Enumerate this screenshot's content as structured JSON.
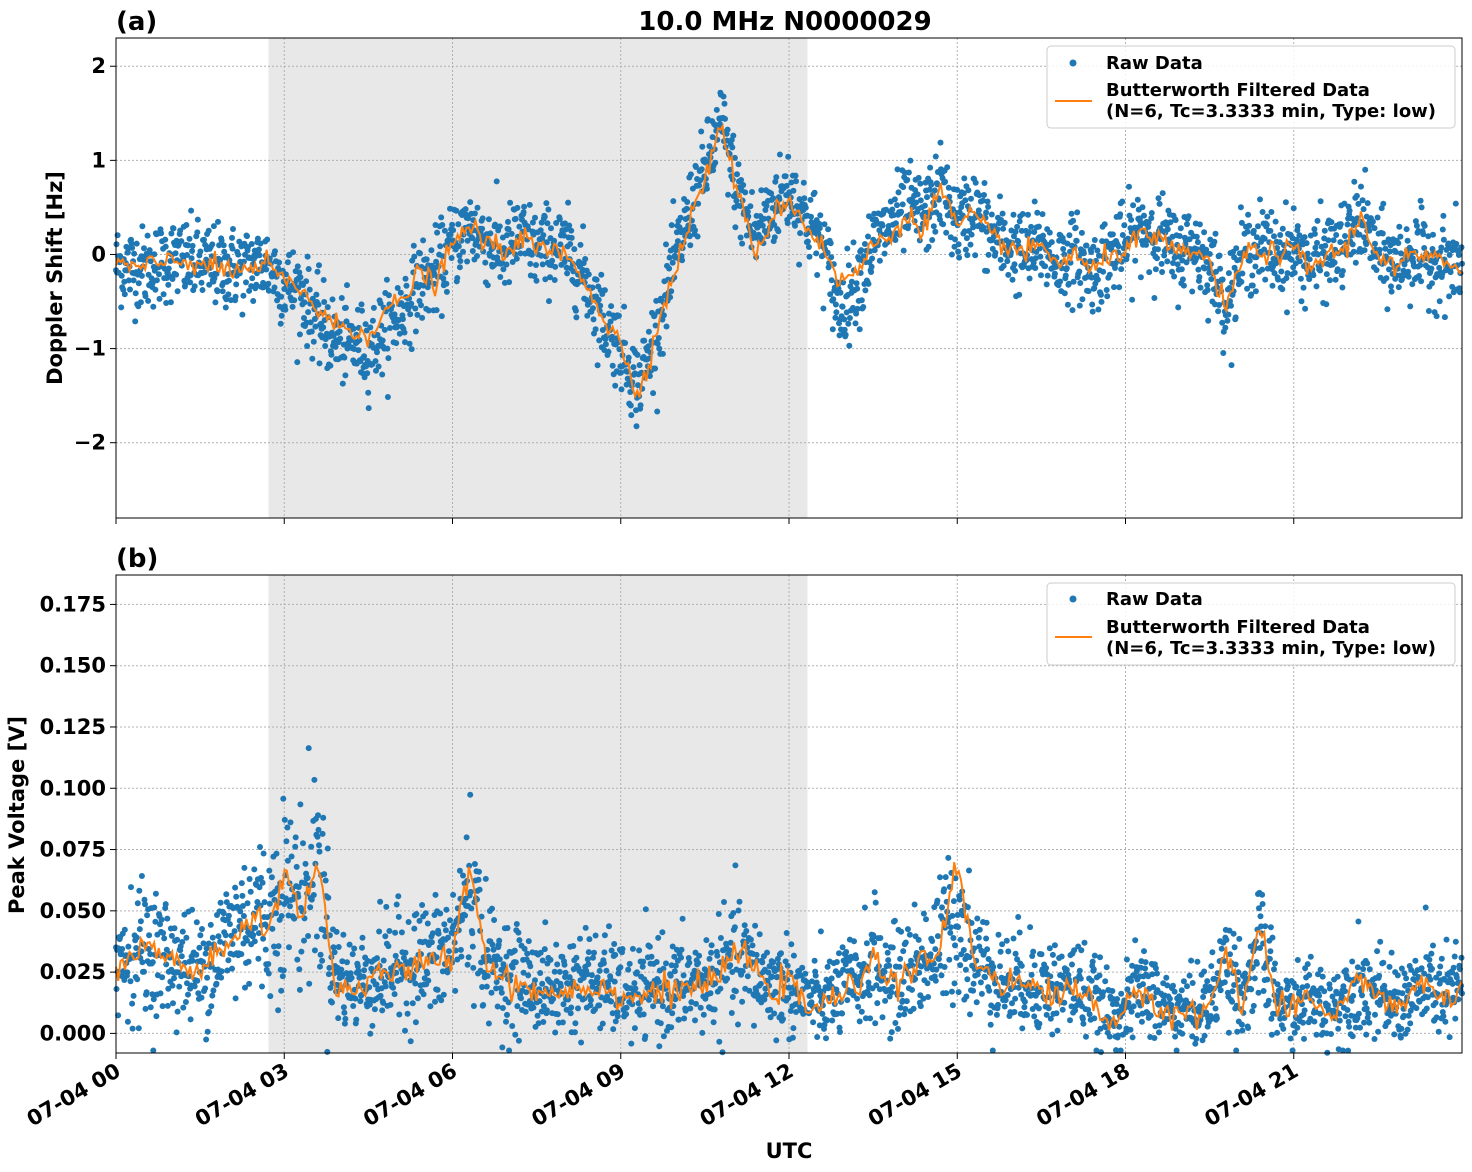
{
  "chart_data": [
    {
      "type": "scatter",
      "panel_label": "(a)",
      "title": "10.0 MHz N0000029",
      "xlabel": "",
      "ylabel": "Doppler Shift [Hz]",
      "x_unit": "hours UTC on 07-04",
      "xlim": [
        0,
        24
      ],
      "ylim": [
        -2.8,
        2.3
      ],
      "yticks": [
        -2,
        -1,
        0,
        1,
        2
      ],
      "ytick_labels": [
        "−2",
        "−1",
        "0",
        "1",
        "2"
      ],
      "grid": true,
      "shaded_region": [
        2.72,
        12.33
      ],
      "legend": {
        "placement": "top-right",
        "entries": [
          "Raw Data",
          "Butterworth Filtered Data",
          "(N=6, Tc=3.3333 min, Type: low)"
        ]
      },
      "series": [
        {
          "name": "Raw Data",
          "color": "#1f77b4",
          "kind": "scatter",
          "x": [
            0,
            0.5,
            1,
            1.5,
            2,
            2.5,
            2.7,
            3,
            3.3,
            3.6,
            3.9,
            4.2,
            4.5,
            4.8,
            5.1,
            5.4,
            5.7,
            6,
            6.3,
            6.6,
            6.9,
            7.2,
            7.5,
            7.8,
            8.1,
            8.4,
            8.7,
            9,
            9.3,
            9.6,
            9.9,
            10.2,
            10.5,
            10.8,
            11.1,
            11.4,
            11.7,
            12,
            12.3,
            12.6,
            12.9,
            13.2,
            13.5,
            13.8,
            14.1,
            14.4,
            14.7,
            15,
            15.3,
            15.6,
            15.9,
            16.2,
            16.5,
            16.8,
            17.1,
            17.4,
            17.7,
            18,
            18.3,
            18.6,
            18.9,
            19.2,
            19.5,
            19.8,
            20.1,
            20.4,
            20.7,
            21,
            21.3,
            21.6,
            21.9,
            22.2,
            22.5,
            22.8,
            23.1,
            23.4,
            23.7,
            24
          ],
          "y": [
            -0.1,
            -0.15,
            -0.05,
            -0.1,
            -0.15,
            -0.12,
            -0.1,
            -0.3,
            -0.4,
            -0.7,
            -0.9,
            -0.95,
            -1.0,
            -0.8,
            -0.6,
            -0.3,
            -0.2,
            0.1,
            0.3,
            0.15,
            0.0,
            0.2,
            0.05,
            0.1,
            0.0,
            -0.3,
            -0.7,
            -1.0,
            -1.4,
            -0.9,
            -0.2,
            0.4,
            0.9,
            1.4,
            0.6,
            0.2,
            0.5,
            0.7,
            0.4,
            0.1,
            -0.6,
            -0.3,
            0.1,
            0.3,
            0.5,
            0.4,
            0.7,
            0.3,
            0.5,
            0.2,
            0.1,
            0.0,
            0.1,
            -0.1,
            0.0,
            -0.2,
            0.0,
            0.1,
            0.3,
            0.2,
            0.0,
            0.1,
            -0.1,
            -0.5,
            0.0,
            0.1,
            0.0,
            0.05,
            -0.1,
            0.0,
            0.1,
            0.4,
            0.0,
            -0.1,
            0.0,
            -0.05,
            -0.1,
            -0.1
          ]
        },
        {
          "name": "Butterworth Filtered Data",
          "color": "#ff7f0e",
          "kind": "line",
          "x": [
            0,
            0.5,
            1,
            1.5,
            2,
            2.5,
            2.7,
            3,
            3.3,
            3.6,
            3.9,
            4.2,
            4.5,
            4.8,
            5.1,
            5.4,
            5.7,
            6,
            6.3,
            6.6,
            6.9,
            7.2,
            7.5,
            7.8,
            8.1,
            8.4,
            8.7,
            9,
            9.3,
            9.6,
            9.9,
            10.2,
            10.5,
            10.8,
            11.1,
            11.4,
            11.7,
            12,
            12.3,
            12.6,
            12.9,
            13.2,
            13.5,
            13.8,
            14.1,
            14.4,
            14.7,
            15,
            15.3,
            15.6,
            15.9,
            16.2,
            16.5,
            16.8,
            17.1,
            17.4,
            17.7,
            18,
            18.3,
            18.6,
            18.9,
            19.2,
            19.5,
            19.8,
            20.1,
            20.4,
            20.7,
            21,
            21.3,
            21.6,
            21.9,
            22.2,
            22.5,
            22.8,
            23.1,
            23.4,
            23.7,
            24
          ],
          "y": [
            -0.1,
            -0.15,
            -0.05,
            -0.1,
            -0.18,
            -0.15,
            -0.1,
            -0.3,
            -0.35,
            -0.6,
            -0.75,
            -0.8,
            -0.85,
            -0.6,
            -0.5,
            -0.2,
            -0.3,
            0.1,
            0.3,
            0.15,
            0.0,
            0.2,
            0.05,
            0.05,
            -0.05,
            -0.3,
            -0.7,
            -0.95,
            -1.5,
            -0.9,
            -0.3,
            0.3,
            0.8,
            1.4,
            0.6,
            0.0,
            0.4,
            0.6,
            0.3,
            0.1,
            -0.3,
            -0.2,
            0.1,
            0.2,
            0.4,
            0.3,
            0.7,
            0.3,
            0.4,
            0.2,
            0.1,
            0.0,
            0.1,
            -0.1,
            0.0,
            -0.2,
            0.0,
            0.05,
            0.2,
            0.15,
            0.0,
            0.05,
            -0.1,
            -0.6,
            0.0,
            0.05,
            0.0,
            0.05,
            -0.15,
            0.0,
            0.05,
            0.4,
            0.0,
            -0.15,
            0.0,
            -0.05,
            -0.1,
            -0.1
          ]
        }
      ]
    },
    {
      "type": "scatter",
      "panel_label": "(b)",
      "title": "",
      "xlabel": "UTC",
      "ylabel": "Peak Voltage [V]",
      "x_unit": "hours UTC on 07-04",
      "xlim": [
        0,
        24
      ],
      "ylim": [
        -0.008,
        0.187
      ],
      "xticks": [
        0,
        3,
        6,
        9,
        12,
        15,
        18,
        21
      ],
      "xtick_labels": [
        "07-04 00",
        "07-04 03",
        "07-04 06",
        "07-04 09",
        "07-04 12",
        "07-04 15",
        "07-04 18",
        "07-04 21"
      ],
      "yticks": [
        0.0,
        0.025,
        0.05,
        0.075,
        0.1,
        0.125,
        0.15,
        0.175
      ],
      "ytick_labels": [
        "0.000",
        "0.025",
        "0.050",
        "0.075",
        "0.100",
        "0.125",
        "0.150",
        "0.175"
      ],
      "grid": true,
      "shaded_region": [
        2.72,
        12.33
      ],
      "legend": {
        "placement": "top-right",
        "entries": [
          "Raw Data",
          "Butterworth Filtered Data",
          "(N=6, Tc=3.3333 min, Type: low)"
        ]
      },
      "series": [
        {
          "name": "Raw Data",
          "color": "#1f77b4",
          "kind": "scatter",
          "x": [
            0,
            0.5,
            1,
            1.5,
            2,
            2.5,
            2.7,
            3,
            3.3,
            3.6,
            3.9,
            4.2,
            4.5,
            4.8,
            5.1,
            5.4,
            5.7,
            6,
            6.3,
            6.6,
            6.9,
            7.2,
            7.5,
            7.8,
            8.1,
            8.4,
            8.7,
            9,
            9.3,
            9.6,
            9.9,
            10.2,
            10.5,
            10.8,
            11.1,
            11.4,
            11.7,
            12,
            12.3,
            12.6,
            12.9,
            13.2,
            13.5,
            13.8,
            14.1,
            14.4,
            14.7,
            15,
            15.3,
            15.6,
            15.9,
            16.2,
            16.5,
            16.8,
            17.1,
            17.4,
            17.7,
            18,
            18.3,
            18.6,
            18.9,
            19.2,
            19.5,
            19.8,
            20.1,
            20.4,
            20.7,
            21,
            21.3,
            21.6,
            21.9,
            22.2,
            22.5,
            22.8,
            23.1,
            23.4,
            23.7,
            24
          ],
          "y": [
            0.03,
            0.035,
            0.03,
            0.025,
            0.04,
            0.05,
            0.045,
            0.06,
            0.055,
            0.07,
            0.025,
            0.02,
            0.022,
            0.025,
            0.028,
            0.03,
            0.03,
            0.035,
            0.06,
            0.03,
            0.025,
            0.022,
            0.02,
            0.018,
            0.02,
            0.022,
            0.02,
            0.018,
            0.015,
            0.02,
            0.018,
            0.02,
            0.02,
            0.025,
            0.03,
            0.025,
            0.02,
            0.02,
            0.015,
            0.012,
            0.018,
            0.02,
            0.03,
            0.02,
            0.025,
            0.03,
            0.035,
            0.05,
            0.03,
            0.025,
            0.02,
            0.022,
            0.02,
            0.018,
            0.02,
            0.015,
            0.008,
            0.01,
            0.02,
            0.012,
            0.01,
            0.01,
            0.012,
            0.03,
            0.015,
            0.035,
            0.012,
            0.01,
            0.015,
            0.01,
            0.015,
            0.02,
            0.015,
            0.012,
            0.015,
            0.02,
            0.015,
            0.02
          ]
        },
        {
          "name": "Butterworth Filtered Data",
          "color": "#ff7f0e",
          "kind": "line",
          "x": [
            0,
            0.5,
            1,
            1.5,
            2,
            2.5,
            2.7,
            3,
            3.3,
            3.6,
            3.9,
            4.2,
            4.5,
            4.8,
            5.1,
            5.4,
            5.7,
            6,
            6.3,
            6.6,
            6.9,
            7.2,
            7.5,
            7.8,
            8.1,
            8.4,
            8.7,
            9,
            9.3,
            9.6,
            9.9,
            10.2,
            10.5,
            10.8,
            11.1,
            11.4,
            11.7,
            12,
            12.3,
            12.6,
            12.9,
            13.2,
            13.5,
            13.8,
            14.1,
            14.4,
            14.7,
            15,
            15.3,
            15.6,
            15.9,
            16.2,
            16.5,
            16.8,
            17.1,
            17.4,
            17.7,
            18,
            18.3,
            18.6,
            18.9,
            19.2,
            19.5,
            19.8,
            20.1,
            20.4,
            20.7,
            21,
            21.3,
            21.6,
            21.9,
            22.2,
            22.5,
            22.8,
            23.1,
            23.4,
            23.7,
            24
          ],
          "y": [
            0.025,
            0.035,
            0.03,
            0.025,
            0.035,
            0.05,
            0.04,
            0.065,
            0.05,
            0.07,
            0.02,
            0.018,
            0.02,
            0.024,
            0.026,
            0.028,
            0.028,
            0.032,
            0.07,
            0.03,
            0.022,
            0.02,
            0.018,
            0.016,
            0.018,
            0.02,
            0.018,
            0.016,
            0.014,
            0.018,
            0.016,
            0.02,
            0.018,
            0.025,
            0.035,
            0.025,
            0.018,
            0.02,
            0.012,
            0.01,
            0.016,
            0.018,
            0.035,
            0.018,
            0.025,
            0.028,
            0.035,
            0.07,
            0.03,
            0.025,
            0.02,
            0.02,
            0.018,
            0.016,
            0.018,
            0.014,
            0.005,
            0.008,
            0.018,
            0.01,
            0.008,
            0.008,
            0.01,
            0.035,
            0.012,
            0.045,
            0.01,
            0.008,
            0.015,
            0.008,
            0.012,
            0.025,
            0.015,
            0.01,
            0.015,
            0.022,
            0.012,
            0.018
          ]
        }
      ]
    }
  ],
  "colors": {
    "raw": "#1f77b4",
    "filtered": "#ff7f0e",
    "shade": "#e8e8e8",
    "grid": "#b0b0b0"
  }
}
